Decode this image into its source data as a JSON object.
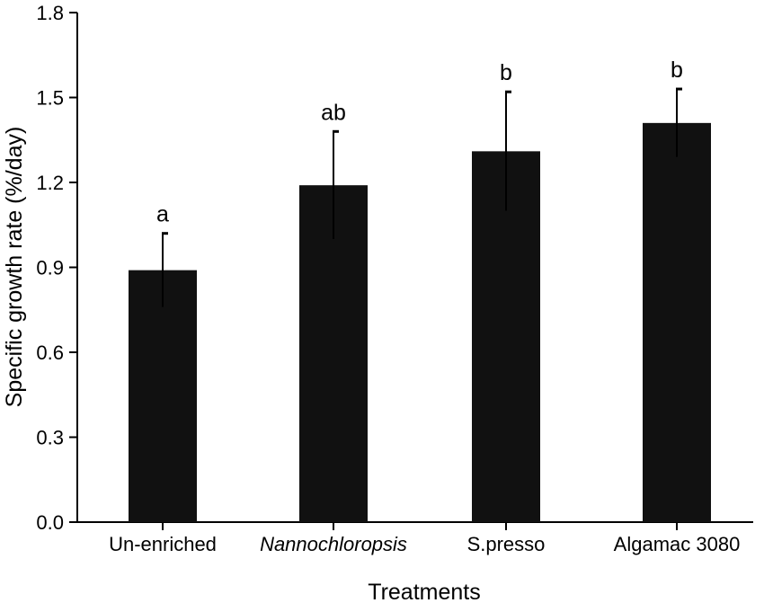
{
  "chart_data": {
    "type": "bar",
    "title": "",
    "xlabel": "Treatments",
    "ylabel": "Specific growth rate (%/day)",
    "ylim": [
      0,
      1.8
    ],
    "yticks": [
      "0.0",
      "0.3",
      "0.6",
      "0.9",
      "1.2",
      "1.5",
      "1.8"
    ],
    "grid": false,
    "categories": [
      "Un-enriched",
      "Nannochloropsis",
      "S.presso",
      "Algamac 3080"
    ],
    "category_italic": [
      false,
      true,
      false,
      false
    ],
    "values": [
      0.89,
      1.19,
      1.31,
      1.41
    ],
    "errors": [
      0.13,
      0.19,
      0.21,
      0.12
    ],
    "significance": [
      "a",
      "ab",
      "b",
      "b"
    ],
    "bar_color": "#111111"
  }
}
